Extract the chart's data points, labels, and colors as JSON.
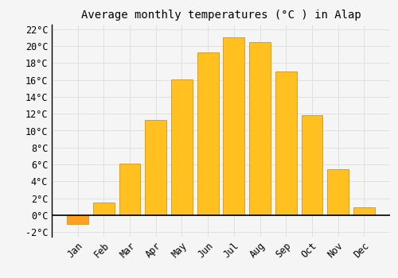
{
  "title": "Average monthly temperatures (°C ) in Alap",
  "months": [
    "Jan",
    "Feb",
    "Mar",
    "Apr",
    "May",
    "Jun",
    "Jul",
    "Aug",
    "Sep",
    "Oct",
    "Nov",
    "Dec"
  ],
  "values": [
    -1.0,
    1.5,
    6.1,
    11.3,
    16.1,
    19.3,
    21.0,
    20.5,
    17.0,
    11.8,
    5.4,
    0.9
  ],
  "bar_color_positive": "#FFC020",
  "bar_color_negative": "#FFA020",
  "bar_edge_color": "#CC8800",
  "background_color": "#F5F5F5",
  "grid_color": "#E0E0E0",
  "ylim": [
    -2.5,
    22.5
  ],
  "yticks": [
    -2,
    0,
    2,
    4,
    6,
    8,
    10,
    12,
    14,
    16,
    18,
    20,
    22
  ],
  "title_fontsize": 10,
  "tick_fontsize": 8.5,
  "bar_width": 0.82
}
